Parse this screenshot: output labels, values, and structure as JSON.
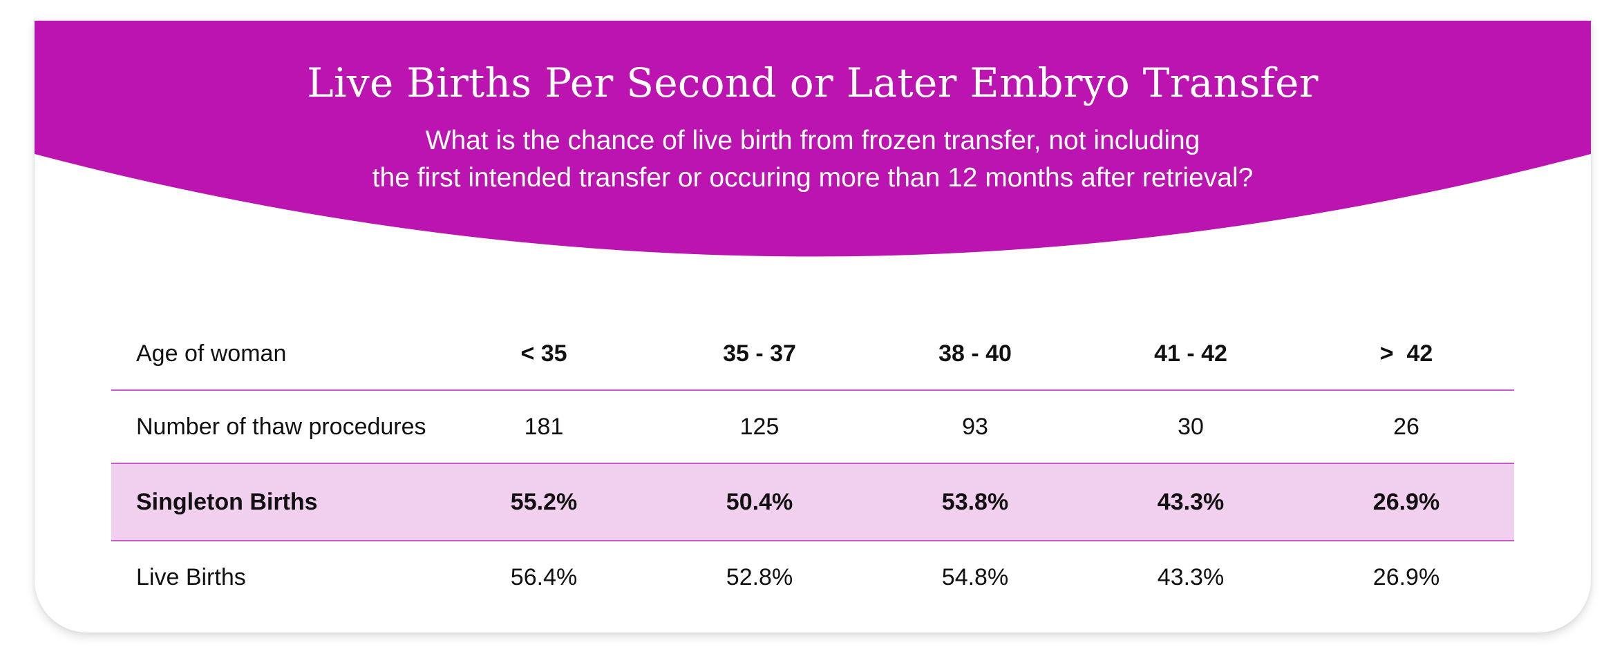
{
  "colors": {
    "banner": "#bb14b0",
    "highlight_row": "#f1cfee",
    "rule": "#c85ac8"
  },
  "header": {
    "title": "Live Births Per Second or Later Embryo Transfer",
    "subtitle_line1": "What is the chance of live birth from frozen transfer, not including",
    "subtitle_line2": "the first intended transfer or occuring more than 12 months after retrieval?"
  },
  "table": {
    "header": {
      "label": "Age of woman",
      "columns": [
        "< 35",
        "35 - 37",
        "38 - 40",
        "41 - 42",
        ">  42"
      ]
    },
    "rows": [
      {
        "label": "Number of thaw procedures",
        "values": [
          "181",
          "125",
          "93",
          "30",
          "26"
        ]
      },
      {
        "label": "Singleton Births",
        "values": [
          "55.2%",
          "50.4%",
          "53.8%",
          "43.3%",
          "26.9%"
        ]
      },
      {
        "label": "Live Births",
        "values": [
          "56.4%",
          "52.8%",
          "54.8%",
          "43.3%",
          "26.9%"
        ]
      }
    ]
  }
}
